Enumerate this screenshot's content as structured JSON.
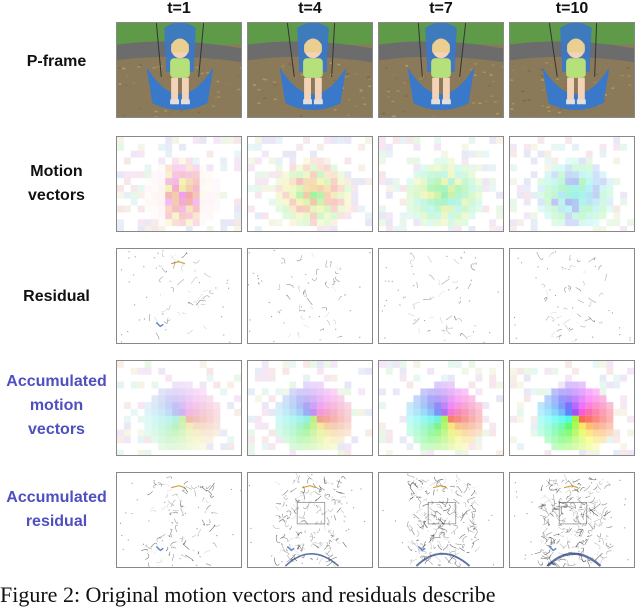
{
  "columns": [
    "t=1",
    "t=4",
    "t=7",
    "t=10"
  ],
  "rows": [
    {
      "label": [
        "P-frame"
      ],
      "type": "frame",
      "accent": false
    },
    {
      "label": [
        "Motion",
        "vectors"
      ],
      "type": "mv",
      "accent": false
    },
    {
      "label": [
        "Residual"
      ],
      "type": "residual",
      "accent": false
    },
    {
      "label": [
        "Accumulated",
        "motion",
        "vectors"
      ],
      "type": "accmv",
      "accent": true
    },
    {
      "label": [
        "Accumulated",
        "residual"
      ],
      "type": "accres",
      "accent": true
    }
  ],
  "caption": "Figure 2: Original motion vectors and residuals describe",
  "colors": {
    "accent_label": "#4f4fc0",
    "swing_seat": "#3a78c9",
    "shirt": "#b6e07a",
    "grass": "#5f9a48",
    "pavement": "#6c6c6c"
  }
}
